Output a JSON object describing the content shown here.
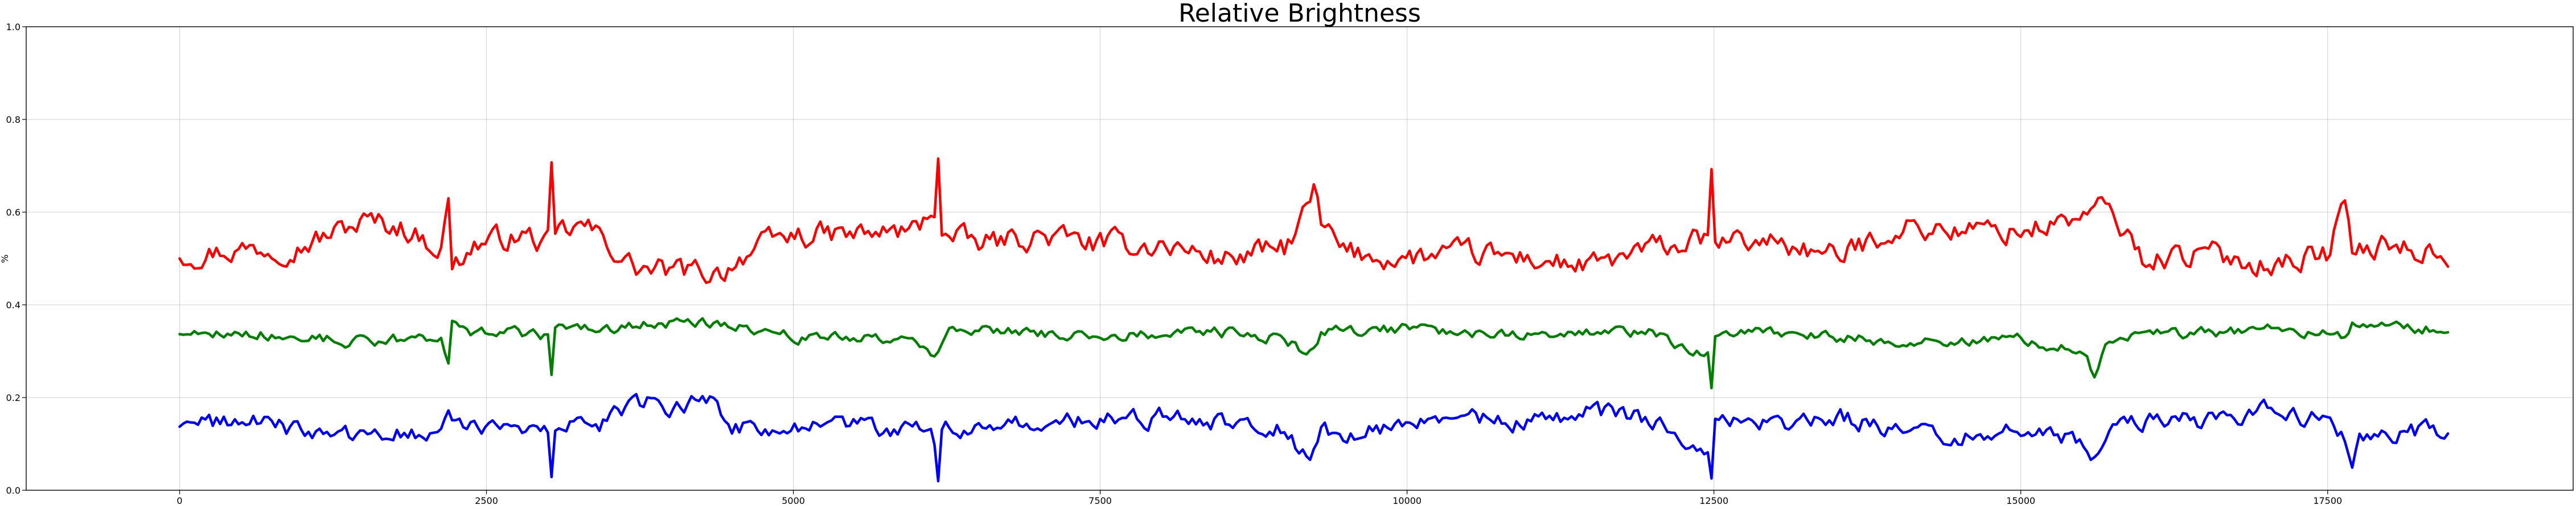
{
  "chart_data": {
    "type": "line",
    "title": "Relative Brightness",
    "xlabel": "",
    "ylabel": "%",
    "xlim": [
      -1250,
      19500
    ],
    "ylim": [
      0,
      1
    ],
    "x_ticks": [
      0,
      2500,
      5000,
      7500,
      10000,
      12500,
      15000,
      17500
    ],
    "x_tick_labels": [
      "0",
      "2500",
      "5000",
      "7500",
      "10000",
      "12500",
      "15000",
      "17500"
    ],
    "y_ticks": [
      0,
      0.2,
      0.4,
      0.6,
      0.8,
      1.0
    ],
    "y_tick_labels": [
      "0.0",
      "0.2",
      "0.4",
      "0.6",
      "0.8",
      "1.0"
    ],
    "grid": true,
    "legend": "none",
    "x_range": [
      0,
      18500
    ],
    "series": [
      {
        "color": "#ff0000",
        "points": [
          [
            0,
            0.51
          ],
          [
            500,
            0.52
          ],
          [
            1000,
            0.53
          ],
          [
            1500,
            0.58
          ],
          [
            1800,
            0.57
          ],
          [
            2000,
            0.54
          ],
          [
            2150,
            0.52
          ],
          [
            2180,
            0.7
          ],
          [
            2210,
            0.48
          ],
          [
            2400,
            0.53
          ],
          [
            2600,
            0.54
          ],
          [
            2800,
            0.55
          ],
          [
            3000,
            0.53
          ],
          [
            3030,
            0.7
          ],
          [
            3060,
            0.55
          ],
          [
            3300,
            0.57
          ],
          [
            3500,
            0.53
          ],
          [
            3700,
            0.48
          ],
          [
            4000,
            0.47
          ],
          [
            4200,
            0.47
          ],
          [
            4400,
            0.47
          ],
          [
            4600,
            0.51
          ],
          [
            5000,
            0.55
          ],
          [
            5500,
            0.55
          ],
          [
            6000,
            0.56
          ],
          [
            6150,
            0.61
          ],
          [
            6180,
            0.72
          ],
          [
            6210,
            0.55
          ],
          [
            6500,
            0.53
          ],
          [
            7000,
            0.55
          ],
          [
            7500,
            0.53
          ],
          [
            8000,
            0.53
          ],
          [
            8500,
            0.5
          ],
          [
            9000,
            0.52
          ],
          [
            9200,
            0.61
          ],
          [
            9250,
            0.67
          ],
          [
            9300,
            0.57
          ],
          [
            9500,
            0.51
          ],
          [
            10000,
            0.5
          ],
          [
            10500,
            0.51
          ],
          [
            11000,
            0.5
          ],
          [
            11500,
            0.48
          ],
          [
            12000,
            0.52
          ],
          [
            12450,
            0.54
          ],
          [
            12480,
            0.69
          ],
          [
            12510,
            0.53
          ],
          [
            13000,
            0.54
          ],
          [
            13500,
            0.5
          ],
          [
            14000,
            0.57
          ],
          [
            14500,
            0.56
          ],
          [
            15000,
            0.56
          ],
          [
            15500,
            0.59
          ],
          [
            15700,
            0.61
          ],
          [
            16000,
            0.5
          ],
          [
            16500,
            0.51
          ],
          [
            17000,
            0.49
          ],
          [
            17500,
            0.51
          ],
          [
            17650,
            0.63
          ],
          [
            17700,
            0.51
          ],
          [
            18000,
            0.53
          ],
          [
            18500,
            0.51
          ]
        ]
      },
      {
        "color": "#008000",
        "points": [
          [
            0,
            0.34
          ],
          [
            500,
            0.34
          ],
          [
            1000,
            0.33
          ],
          [
            1500,
            0.32
          ],
          [
            2000,
            0.33
          ],
          [
            2150,
            0.33
          ],
          [
            2180,
            0.23
          ],
          [
            2210,
            0.36
          ],
          [
            2400,
            0.34
          ],
          [
            2700,
            0.34
          ],
          [
            3000,
            0.33
          ],
          [
            3030,
            0.25
          ],
          [
            3060,
            0.35
          ],
          [
            3500,
            0.35
          ],
          [
            4000,
            0.36
          ],
          [
            4500,
            0.36
          ],
          [
            5000,
            0.33
          ],
          [
            5500,
            0.33
          ],
          [
            6000,
            0.32
          ],
          [
            6150,
            0.29
          ],
          [
            6300,
            0.35
          ],
          [
            7000,
            0.34
          ],
          [
            7500,
            0.33
          ],
          [
            8000,
            0.34
          ],
          [
            8500,
            0.34
          ],
          [
            9000,
            0.33
          ],
          [
            9200,
            0.29
          ],
          [
            9300,
            0.34
          ],
          [
            10000,
            0.35
          ],
          [
            10500,
            0.34
          ],
          [
            11000,
            0.34
          ],
          [
            11500,
            0.34
          ],
          [
            12000,
            0.34
          ],
          [
            12450,
            0.29
          ],
          [
            12480,
            0.22
          ],
          [
            12510,
            0.33
          ],
          [
            13000,
            0.34
          ],
          [
            13500,
            0.33
          ],
          [
            14000,
            0.32
          ],
          [
            14500,
            0.32
          ],
          [
            15000,
            0.33
          ],
          [
            15500,
            0.3
          ],
          [
            15600,
            0.25
          ],
          [
            15700,
            0.33
          ],
          [
            16000,
            0.34
          ],
          [
            16500,
            0.34
          ],
          [
            17000,
            0.35
          ],
          [
            17500,
            0.34
          ],
          [
            17650,
            0.32
          ],
          [
            17700,
            0.36
          ],
          [
            18000,
            0.35
          ],
          [
            18500,
            0.35
          ]
        ]
      },
      {
        "color": "#0000ff",
        "points": [
          [
            0,
            0.14
          ],
          [
            500,
            0.15
          ],
          [
            1000,
            0.13
          ],
          [
            1500,
            0.11
          ],
          [
            2000,
            0.13
          ],
          [
            2150,
            0.14
          ],
          [
            2180,
            0.18
          ],
          [
            2210,
            0.16
          ],
          [
            2500,
            0.13
          ],
          [
            3000,
            0.12
          ],
          [
            3030,
            0.03
          ],
          [
            3060,
            0.13
          ],
          [
            3500,
            0.15
          ],
          [
            3800,
            0.19
          ],
          [
            4000,
            0.18
          ],
          [
            4300,
            0.2
          ],
          [
            4500,
            0.14
          ],
          [
            5000,
            0.13
          ],
          [
            5500,
            0.14
          ],
          [
            6000,
            0.13
          ],
          [
            6150,
            0.1
          ],
          [
            6180,
            0.02
          ],
          [
            6210,
            0.13
          ],
          [
            7000,
            0.14
          ],
          [
            7500,
            0.15
          ],
          [
            8000,
            0.16
          ],
          [
            8500,
            0.15
          ],
          [
            9000,
            0.14
          ],
          [
            9200,
            0.06
          ],
          [
            9300,
            0.12
          ],
          [
            10000,
            0.14
          ],
          [
            10500,
            0.15
          ],
          [
            11000,
            0.15
          ],
          [
            11500,
            0.17
          ],
          [
            12000,
            0.15
          ],
          [
            12450,
            0.1
          ],
          [
            12480,
            0.03
          ],
          [
            12510,
            0.16
          ],
          [
            13000,
            0.14
          ],
          [
            13500,
            0.16
          ],
          [
            14000,
            0.13
          ],
          [
            14500,
            0.12
          ],
          [
            15000,
            0.13
          ],
          [
            15500,
            0.1
          ],
          [
            15600,
            0.06
          ],
          [
            15700,
            0.13
          ],
          [
            16000,
            0.15
          ],
          [
            16500,
            0.15
          ],
          [
            17000,
            0.17
          ],
          [
            17500,
            0.15
          ],
          [
            17650,
            0.1
          ],
          [
            17700,
            0.05
          ],
          [
            17750,
            0.11
          ],
          [
            18000,
            0.12
          ],
          [
            18500,
            0.13
          ]
        ]
      }
    ]
  }
}
